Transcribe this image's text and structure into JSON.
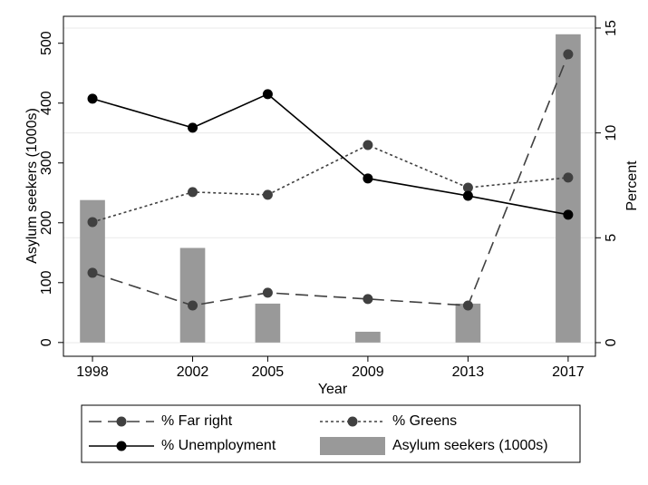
{
  "chart_data": {
    "type": "combo",
    "x": [
      1998,
      2002,
      2005,
      2009,
      2013,
      2017
    ],
    "xlabel": "Year",
    "ylabel": "Asylum seekers (1000s)",
    "y2label": "Percent",
    "xlim": [
      1996.84,
      2018.09
    ],
    "xticks": [
      1998,
      2002,
      2005,
      2009,
      2013,
      2017
    ],
    "ylim": [
      -23,
      545
    ],
    "yticks": [
      0,
      100,
      200,
      300,
      400,
      500
    ],
    "y2lim": [
      -0.65,
      15.56
    ],
    "y2ticks": [
      0,
      5,
      10,
      15
    ],
    "grid": "y2",
    "legend": "bottom",
    "series": [
      {
        "name": "% Far right",
        "kind": "line",
        "dash": "long",
        "color": "#404040",
        "axis": "y2",
        "values": [
          3.33,
          1.77,
          2.38,
          2.08,
          1.77,
          13.75
        ]
      },
      {
        "name": "% Greens",
        "kind": "line",
        "dash": "short",
        "color": "#404040",
        "axis": "y2",
        "values": [
          5.75,
          7.18,
          7.05,
          9.42,
          7.39,
          7.87
        ]
      },
      {
        "name": "% Unemployment",
        "kind": "line",
        "dash": "solid",
        "color": "#000000",
        "axis": "y2",
        "values": [
          11.63,
          10.25,
          11.85,
          7.83,
          7.0,
          6.1
        ]
      },
      {
        "name": "Asylum seekers (1000s)",
        "kind": "bar",
        "color": "#999999",
        "axis": "y",
        "values": [
          238,
          158,
          65,
          18,
          65,
          515
        ]
      }
    ]
  }
}
